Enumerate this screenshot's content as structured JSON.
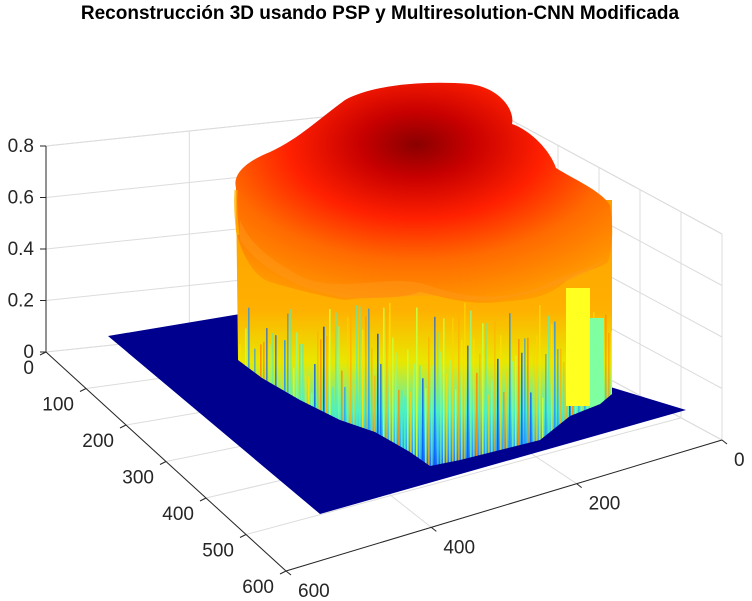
{
  "chart_data": {
    "type": "surface",
    "title": "Reconstrucción 3D usando PSP y Multiresolution-CNN Modificada",
    "xlabel": "",
    "ylabel": "",
    "zlabel": "",
    "x_ticks": [
      "0",
      "100",
      "200",
      "300",
      "400",
      "500",
      "600"
    ],
    "y_ticks": [
      "0",
      "200",
      "400",
      "600"
    ],
    "z_ticks": [
      "0",
      "0.2",
      "0.4",
      "0.6",
      "0.8"
    ],
    "xlim": [
      0,
      600
    ],
    "ylim": [
      0,
      600
    ],
    "zlim": [
      0,
      0.8
    ],
    "colormap": "jet",
    "grid": true,
    "surface": {
      "base_level": 0,
      "object_height_range": [
        0.55,
        0.8
      ],
      "peak_value": 0.8
    }
  }
}
